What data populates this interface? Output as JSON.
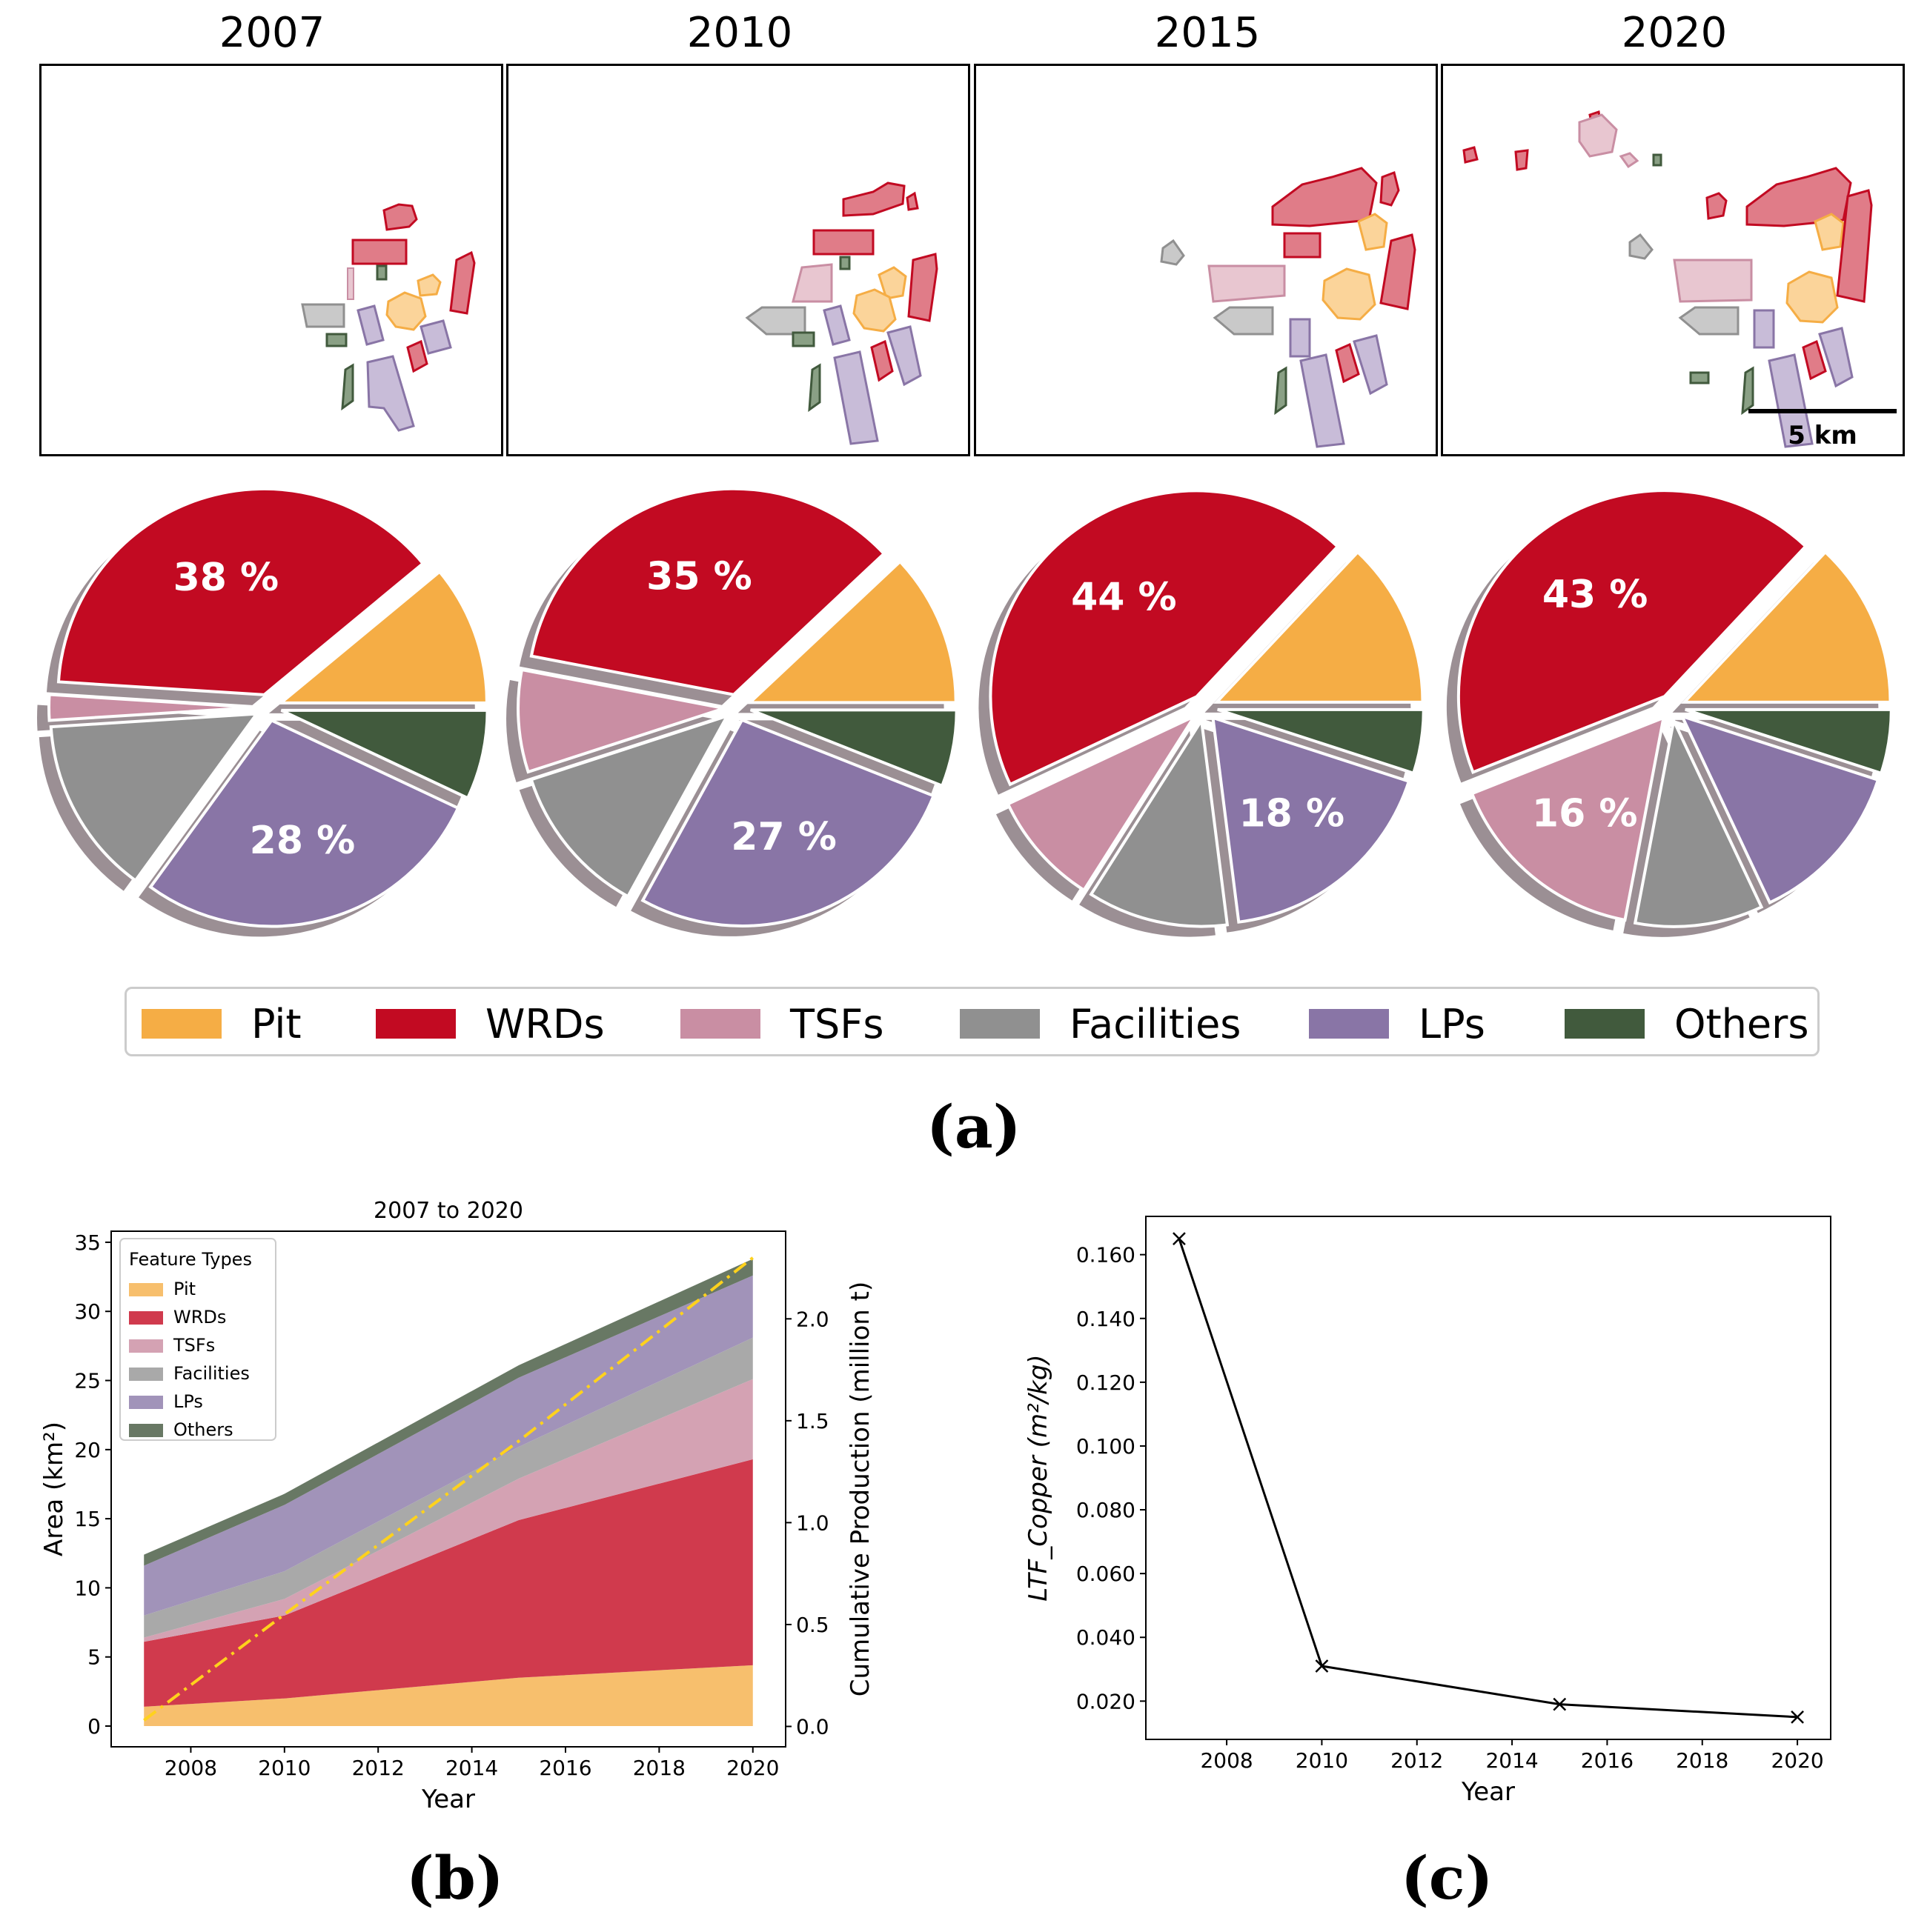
{
  "colors": {
    "Pit": "#f5ad45",
    "WRDs": "#c20a22",
    "TSFs": "#c98ea3",
    "Facilities": "#909090",
    "LPs": "#8975a6",
    "Others": "#415a3d"
  },
  "panel_a": {
    "label": "(a)",
    "years": [
      "2007",
      "2010",
      "2015",
      "2020"
    ],
    "scale_bar_label": "5 km",
    "legend": [
      "Pit",
      "WRDs",
      "TSFs",
      "Facilities",
      "LPs",
      "Others"
    ]
  },
  "panel_b": {
    "label": "(b)"
  },
  "panel_c": {
    "label": "(c)"
  },
  "chart_data": [
    {
      "type": "pie",
      "year": "2007",
      "labels": [
        "Pit",
        "WRDs",
        "TSFs",
        "Facilities",
        "LPs",
        "Others"
      ],
      "values": [
        11,
        38,
        2,
        14,
        28,
        7
      ],
      "shown_labels": {
        "WRDs": "38 %",
        "LPs": "28 %"
      }
    },
    {
      "type": "pie",
      "year": "2010",
      "labels": [
        "Pit",
        "WRDs",
        "TSFs",
        "Facilities",
        "LPs",
        "Others"
      ],
      "values": [
        12,
        35,
        8,
        12,
        27,
        6
      ],
      "shown_labels": {
        "WRDs": "35 %",
        "LPs": "27 %"
      }
    },
    {
      "type": "pie",
      "year": "2015",
      "labels": [
        "Pit",
        "WRDs",
        "TSFs",
        "Facilities",
        "LPs",
        "Others"
      ],
      "values": [
        13,
        44,
        9,
        11,
        18,
        5
      ],
      "shown_labels": {
        "WRDs": "44 %",
        "LPs": "18 %"
      }
    },
    {
      "type": "pie",
      "year": "2020",
      "labels": [
        "Pit",
        "WRDs",
        "TSFs",
        "Facilities",
        "LPs",
        "Others"
      ],
      "values": [
        13,
        43,
        16,
        10,
        13,
        5
      ],
      "shown_labels": {
        "WRDs": "43 %",
        "TSFs": "16 %"
      }
    },
    {
      "type": "area",
      "title": "2007 to 2020",
      "xlabel": "Year",
      "ylabel": "Area (km²)",
      "ylabel_right": "Cumulative Production (million t)",
      "x": [
        2007,
        2010,
        2015,
        2020
      ],
      "xlim": [
        2006.3,
        2020.7
      ],
      "ylim": [
        -1.5,
        35.8
      ],
      "ylim_right": [
        -0.1,
        2.43
      ],
      "x_ticks": [
        2008,
        2010,
        2012,
        2014,
        2016,
        2018,
        2020
      ],
      "y_ticks": [
        0,
        5,
        10,
        15,
        20,
        25,
        30,
        35
      ],
      "y_ticks_right": [
        "0.0",
        "0.5",
        "1.0",
        "1.5",
        "2.0"
      ],
      "legend_title": "Feature Types",
      "legend": [
        "Pit",
        "WRDs",
        "TSFs",
        "Facilities",
        "LPs",
        "Others"
      ],
      "series": [
        {
          "name": "Pit",
          "values": [
            1.4,
            2.0,
            3.5,
            4.4
          ]
        },
        {
          "name": "WRDs",
          "values": [
            4.7,
            6.0,
            11.4,
            14.9
          ]
        },
        {
          "name": "TSFs",
          "values": [
            0.3,
            1.2,
            3.0,
            5.8
          ]
        },
        {
          "name": "Facilities",
          "values": [
            1.6,
            2.0,
            2.3,
            3.0
          ]
        },
        {
          "name": "LPs",
          "values": [
            3.6,
            4.8,
            5.0,
            4.5
          ]
        },
        {
          "name": "Others",
          "values": [
            0.8,
            0.8,
            0.9,
            1.2
          ]
        }
      ],
      "production_line": {
        "x": [
          2007,
          2010,
          2015,
          2020
        ],
        "values": [
          0.03,
          0.55,
          1.4,
          2.3
        ]
      }
    },
    {
      "type": "line",
      "xlabel": "Year",
      "ylabel": "LTF_Copper (m²/kg)",
      "x": [
        2007,
        2010,
        2015,
        2020
      ],
      "values": [
        0.165,
        0.031,
        0.019,
        0.015
      ],
      "xlim": [
        2006.3,
        2020.7
      ],
      "ylim": [
        0.008,
        0.172
      ],
      "x_ticks": [
        2008,
        2010,
        2012,
        2014,
        2016,
        2018,
        2020
      ],
      "y_ticks": [
        "0.020",
        "0.040",
        "0.060",
        "0.080",
        "0.100",
        "0.120",
        "0.140",
        "0.160"
      ]
    }
  ]
}
